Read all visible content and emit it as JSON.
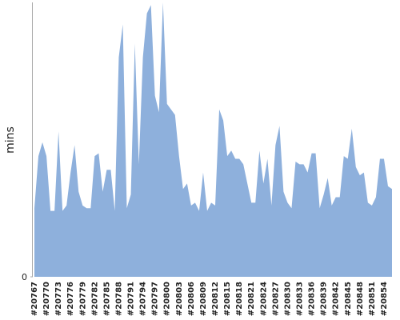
{
  "chart_data": {
    "type": "area",
    "y_label": "mins",
    "color": "#8eb0dc",
    "categories": [
      "#20767",
      null,
      null,
      "#20770",
      null,
      null,
      "#20773",
      null,
      null,
      "#20776",
      null,
      null,
      "#20779",
      null,
      null,
      "#20782",
      null,
      null,
      "#20785",
      null,
      null,
      "#20788",
      null,
      null,
      "#20791",
      null,
      null,
      "#20794",
      null,
      null,
      "#20797",
      null,
      null,
      "#20800",
      null,
      null,
      "#20803",
      null,
      null,
      "#20806",
      null,
      null,
      "#20809",
      null,
      null,
      "#20812",
      null,
      null,
      "#20815",
      null,
      null,
      "#20818",
      null,
      null,
      "#20821",
      null,
      null,
      "#20824",
      null,
      null,
      "#20827",
      null,
      null,
      "#20830",
      null,
      null,
      "#20833",
      null,
      null,
      "#20836",
      null,
      null,
      "#20839",
      null,
      null,
      "#20842",
      null,
      null,
      "#20845",
      null,
      null,
      "#20848",
      null,
      null,
      "#20851",
      null,
      null,
      "#20854",
      null,
      null
    ],
    "values": [
      25,
      44,
      49,
      44,
      24,
      24,
      53,
      24,
      26,
      38,
      48,
      31,
      26,
      25,
      25,
      44,
      45,
      31,
      39,
      39,
      24,
      80,
      92,
      25,
      30,
      85,
      41,
      80,
      96,
      99,
      66,
      60,
      100,
      63,
      61,
      59,
      44,
      32,
      34,
      26,
      27,
      24,
      38,
      24,
      27,
      26,
      61,
      57,
      44,
      46,
      43,
      43,
      41,
      34,
      27,
      27,
      46,
      34,
      43,
      26,
      48,
      55,
      31,
      27,
      25,
      42,
      41,
      41,
      38,
      45,
      45,
      25,
      30,
      36,
      26,
      29,
      29,
      44,
      43,
      54,
      40,
      37,
      38,
      27,
      26,
      29,
      43,
      43,
      33,
      32
    ],
    "ylim": [
      0,
      100
    ],
    "yticks": [
      0
    ]
  }
}
